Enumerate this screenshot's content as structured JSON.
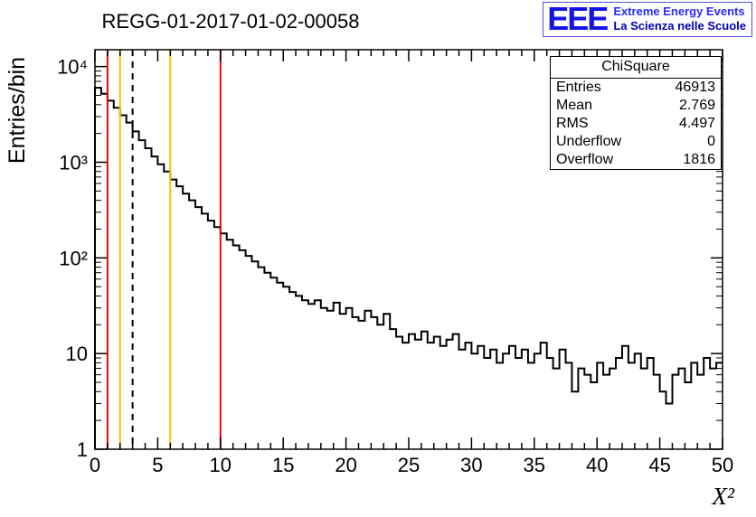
{
  "header": {
    "title": "REGG-01-2017-01-02-00058",
    "logo": {
      "text": "EEE",
      "line1": "Extreme Energy Events",
      "line2": "La Scienza nelle Scuole",
      "color": "#1414e6"
    }
  },
  "stats": {
    "title": "ChiSquare",
    "rows": [
      {
        "label": "Entries",
        "value": "46913"
      },
      {
        "label": "Mean",
        "value": "2.769"
      },
      {
        "label": "RMS",
        "value": "4.497"
      },
      {
        "label": "Underflow",
        "value": "0"
      },
      {
        "label": "Overflow",
        "value": "1816"
      }
    ]
  },
  "chart_data": {
    "type": "bar",
    "style": "step-histogram",
    "title": "REGG-01-2017-01-02-00058",
    "xlabel": "X²",
    "ylabel": "Entries/bin",
    "xlim": [
      0,
      50
    ],
    "ylim": [
      1,
      15000
    ],
    "yscale": "log",
    "grid": false,
    "line_color": "#000000",
    "x_ticks": [
      0,
      5,
      10,
      15,
      20,
      25,
      30,
      35,
      40,
      45,
      50
    ],
    "y_tick_labels": [
      "1",
      "10",
      "10²",
      "10³",
      "10⁴"
    ],
    "bin_start": 0,
    "bin_width": 0.5,
    "counts": [
      6000,
      5200,
      4400,
      3700,
      3100,
      2600,
      2100,
      1700,
      1400,
      1150,
      950,
      800,
      660,
      560,
      470,
      400,
      340,
      290,
      245,
      210,
      180,
      155,
      135,
      120,
      105,
      92,
      80,
      70,
      62,
      55,
      50,
      44,
      40,
      36,
      33,
      36,
      30,
      28,
      34,
      26,
      30,
      24,
      22,
      28,
      24,
      20,
      26,
      18,
      15,
      13,
      16,
      14,
      17,
      13,
      15,
      12,
      14,
      16,
      11,
      13,
      10,
      12,
      9,
      11,
      8,
      10,
      12,
      9,
      11,
      8,
      10,
      13,
      9,
      7,
      11,
      8,
      4,
      7,
      6,
      5,
      8,
      6,
      7,
      9,
      12,
      8,
      10,
      7,
      9,
      6,
      4,
      3,
      6,
      7,
      5,
      8,
      6,
      9,
      7,
      8
    ],
    "marker_lines": [
      {
        "x": 1,
        "color": "#ff0000",
        "style": "solid"
      },
      {
        "x": 2,
        "color": "#ffbf00",
        "style": "solid"
      },
      {
        "x": 3,
        "color": "#000000",
        "style": "dashed"
      },
      {
        "x": 6,
        "color": "#ffbf00",
        "style": "solid"
      },
      {
        "x": 10,
        "color": "#ff0000",
        "style": "solid"
      }
    ]
  }
}
